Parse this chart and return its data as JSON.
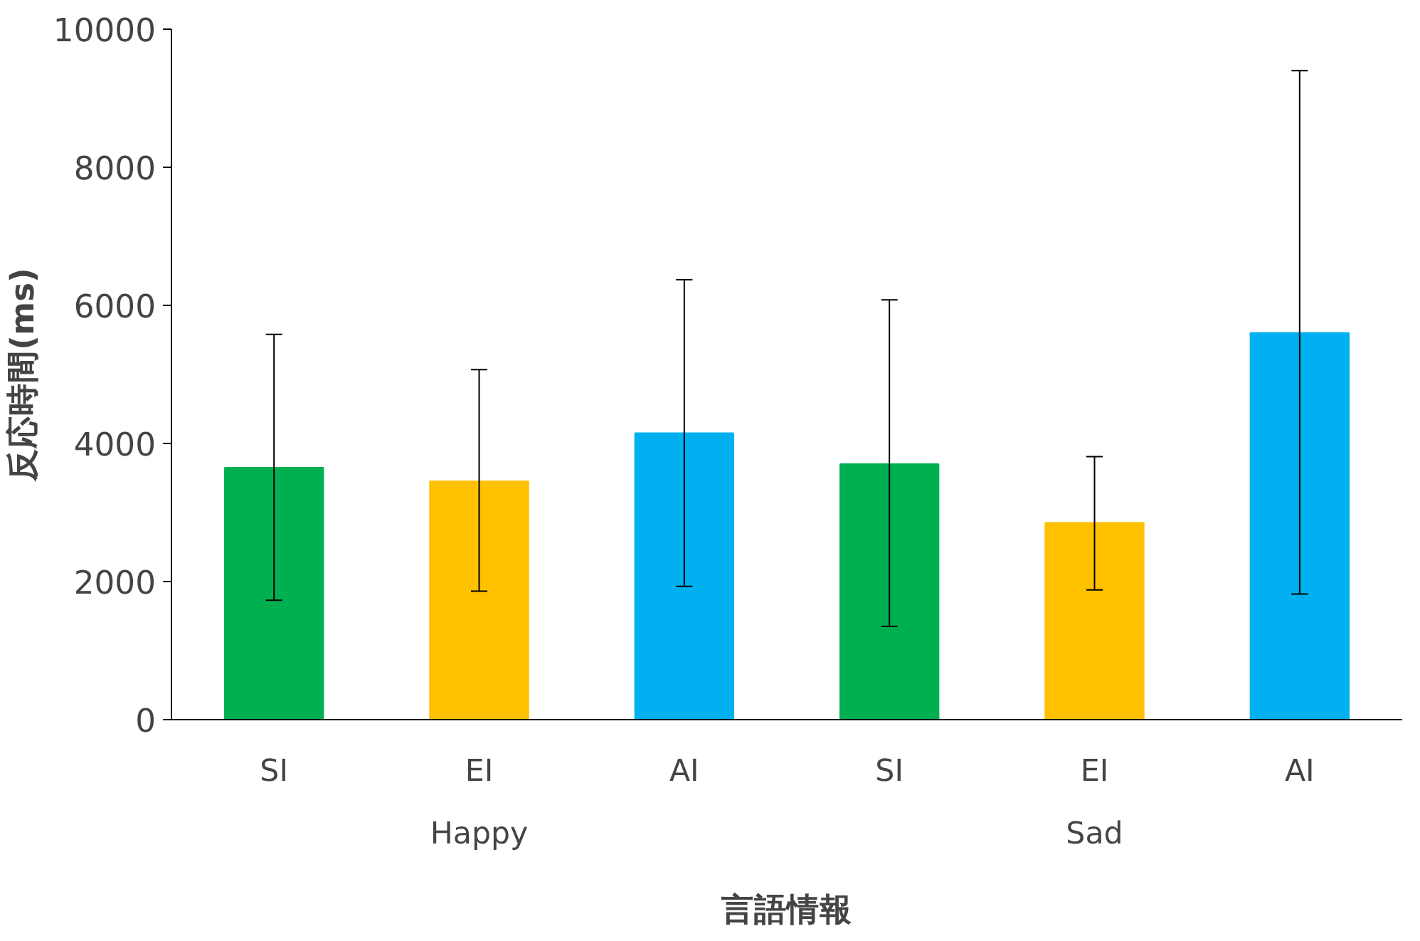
{
  "chart_data": {
    "type": "bar",
    "xlabel": "言語情報",
    "ylabel": "反応時間(ms)",
    "categories": [
      "SI",
      "EI",
      "AI",
      "SI",
      "EI",
      "AI"
    ],
    "values": [
      3650,
      3450,
      4150,
      3700,
      2850,
      5600
    ],
    "colors": [
      "#00b050",
      "#ffc000",
      "#00b0f0",
      "#00b050",
      "#ffc000",
      "#00b0f0"
    ],
    "errors": [
      [
        1730,
        5580
      ],
      [
        1860,
        5070
      ],
      [
        1930,
        6370
      ],
      [
        1350,
        6080
      ],
      [
        1880,
        3810
      ],
      [
        1820,
        9400
      ]
    ],
    "annotations": [
      "Happy",
      "Sad"
    ],
    "ylim": [
      0,
      10000
    ],
    "yticks": [
      0,
      2000,
      4000,
      6000,
      8000,
      10000
    ]
  }
}
